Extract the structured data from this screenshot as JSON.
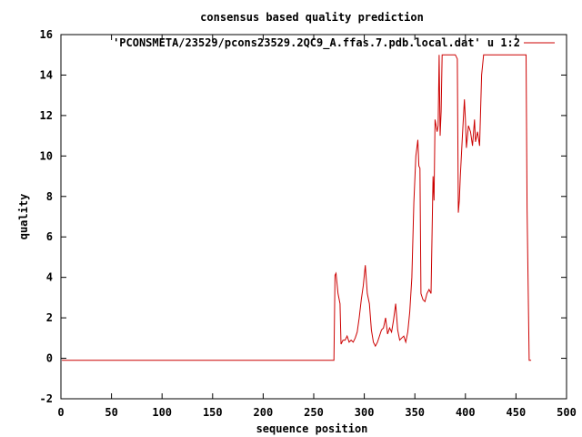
{
  "chart_data": {
    "type": "line",
    "title": "consensus based quality prediction",
    "xlabel": "sequence position",
    "ylabel": "quality",
    "xlim": [
      0,
      500
    ],
    "ylim": [
      -2,
      16
    ],
    "xticks": [
      0,
      50,
      100,
      150,
      200,
      250,
      300,
      350,
      400,
      450,
      500
    ],
    "yticks": [
      -2,
      0,
      2,
      4,
      6,
      8,
      10,
      12,
      14,
      16
    ],
    "grid": false,
    "legend_position": "top-right",
    "series": [
      {
        "name": "'PCONSMETA/23529/pcons23529.2QC9_A.ffas.7.pdb.local.dat' u 1:2",
        "color": "#cc0000",
        "x": [
          1,
          270,
          271,
          272,
          274,
          276,
          277,
          279,
          281,
          283,
          285,
          287,
          289,
          291,
          293,
          295,
          297,
          299,
          301,
          303,
          305,
          307,
          309,
          311,
          313,
          315,
          317,
          319,
          321,
          323,
          325,
          327,
          329,
          331,
          333,
          335,
          337,
          339,
          341,
          343,
          345,
          347,
          349,
          351,
          353,
          354,
          355,
          356,
          358,
          360,
          362,
          364,
          366,
          368,
          369,
          370,
          372,
          373,
          374,
          375,
          376,
          377,
          378,
          380,
          385,
          390,
          392,
          393,
          394,
          395,
          397,
          399,
          400,
          401,
          403,
          405,
          407,
          409,
          410,
          412,
          414,
          416,
          418,
          420,
          425,
          440,
          460,
          461,
          463,
          465
        ],
        "y": [
          -0.1,
          -0.1,
          4.1,
          4.2,
          3.2,
          2.7,
          0.7,
          0.9,
          0.9,
          1.1,
          0.8,
          0.9,
          0.8,
          1.0,
          1.3,
          2.0,
          2.9,
          3.6,
          4.6,
          3.2,
          2.7,
          1.4,
          0.8,
          0.6,
          0.8,
          1.1,
          1.4,
          1.5,
          2.0,
          1.2,
          1.5,
          1.3,
          1.9,
          2.7,
          1.4,
          0.9,
          1.0,
          1.1,
          0.8,
          1.3,
          2.3,
          4.0,
          7.7,
          10.0,
          10.8,
          9.5,
          9.4,
          3.2,
          2.9,
          2.8,
          3.2,
          3.4,
          3.2,
          9.0,
          7.8,
          11.8,
          11.2,
          11.5,
          15.0,
          11.0,
          12.2,
          15.0,
          15.0,
          15.0,
          15.0,
          15.0,
          14.8,
          7.2,
          7.8,
          9.0,
          11.0,
          12.8,
          11.8,
          10.4,
          11.5,
          11.2,
          10.5,
          11.8,
          10.7,
          11.2,
          10.5,
          14.0,
          15.0,
          15.0,
          15.0,
          15.0,
          15.0,
          7.4,
          -0.1,
          -0.1
        ]
      }
    ]
  }
}
